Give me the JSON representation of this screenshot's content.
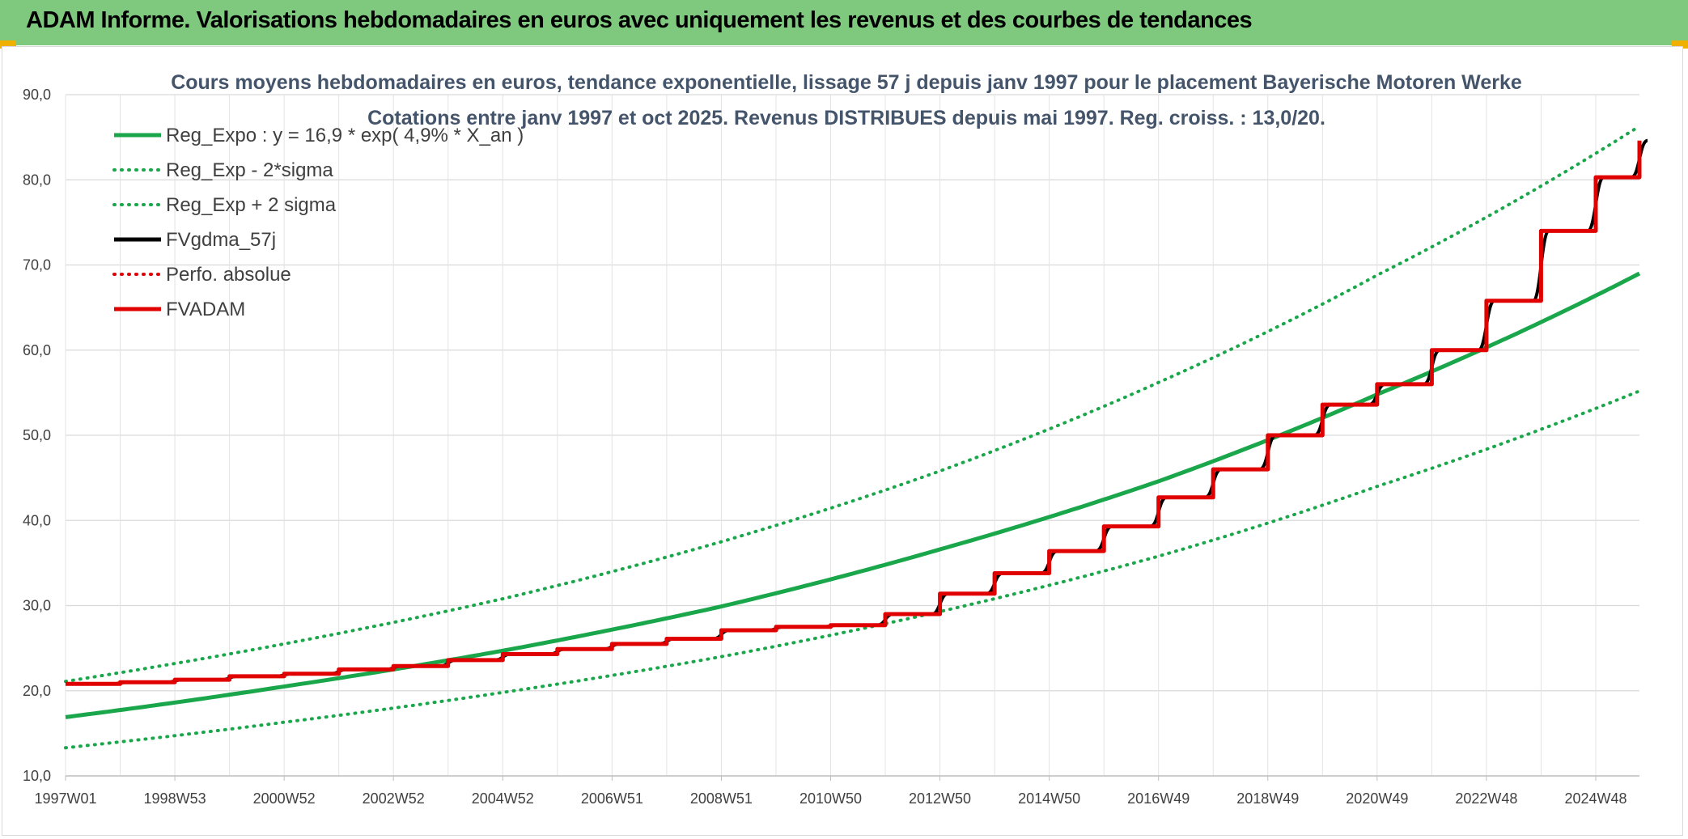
{
  "header": {
    "title": "ADAM Informe. Valorisations hebdomadaires en euros avec uniquement les revenus et des courbes de tendances",
    "background": "#7fc97f"
  },
  "chart_data": {
    "type": "line",
    "title_line1": "Cours moyens hebdomadaires en euros, tendance exponentielle, lissage 57 j depuis janv 1997 pour le placement Bayerische Motoren Werke",
    "title_line2": "Cotations entre janv 1997 et oct 2025. Revenus DISTRIBUES depuis mai 1997. Reg. croiss. : 13,0/20.",
    "xlabel": "",
    "ylabel": "",
    "ylim": [
      10,
      90
    ],
    "y_ticks": [
      "10,0",
      "20,0",
      "30,0",
      "40,0",
      "50,0",
      "60,0",
      "70,0",
      "80,0",
      "90,0"
    ],
    "x_range_years": [
      1997.0,
      2025.8
    ],
    "x_tick_labels": [
      "1997W01",
      "1998W53",
      "2000W52",
      "2002W52",
      "2004W52",
      "2006W51",
      "2008W51",
      "2010W50",
      "2012W50",
      "2014W50",
      "2016W49",
      "2018W49",
      "2020W49",
      "2022W48",
      "2024W48"
    ],
    "x_tick_years": [
      1997,
      1999,
      2001,
      2003,
      2005,
      2007,
      2009,
      2011,
      2013,
      2015,
      2017,
      2019,
      2021,
      2023,
      2025
    ],
    "grid": true,
    "legend_position": "top-left",
    "series": [
      {
        "name": "Reg_Expo : y = 16,9 * exp( 4,9% *  X_an )",
        "color": "#1aa64a",
        "style": "solid",
        "x": [
          1997.0,
          2001.0,
          2005.0,
          2009.0,
          2013.0,
          2017.0,
          2021.0,
          2025.8
        ],
        "values": [
          16.9,
          20.5,
          24.7,
          29.9,
          36.6,
          44.6,
          54.8,
          69.0
        ]
      },
      {
        "name": "Reg_Exp - 2*sigma",
        "color": "#1aa64a",
        "style": "dotted",
        "x": [
          1997.0,
          2001.0,
          2005.0,
          2009.0,
          2013.0,
          2017.0,
          2021.0,
          2025.8
        ],
        "values": [
          13.3,
          16.3,
          19.8,
          24.0,
          29.3,
          35.8,
          44.0,
          55.2
        ]
      },
      {
        "name": "Reg_Exp + 2 sigma",
        "color": "#1aa64a",
        "style": "dotted",
        "x": [
          1997.0,
          2001.0,
          2005.0,
          2009.0,
          2013.0,
          2017.0,
          2021.0,
          2025.8
        ],
        "values": [
          21.1,
          25.5,
          30.8,
          37.5,
          45.8,
          56.2,
          68.8,
          86.3
        ]
      },
      {
        "name": "FVgdma_57j",
        "color": "#000000",
        "style": "smoothstep",
        "x": [
          1997.0,
          1998.0,
          1999.0,
          2000.0,
          2001.0,
          2002.0,
          2003.0,
          2004.0,
          2005.0,
          2006.0,
          2007.0,
          2008.0,
          2009.0,
          2010.0,
          2011.0,
          2012.0,
          2013.0,
          2014.0,
          2015.0,
          2016.0,
          2017.0,
          2018.0,
          2019.0,
          2020.0,
          2021.0,
          2022.0,
          2023.0,
          2024.0,
          2025.0,
          2025.8
        ],
        "values": [
          20.8,
          21.0,
          21.3,
          21.7,
          22.0,
          22.5,
          22.9,
          23.6,
          24.3,
          24.9,
          25.5,
          26.1,
          27.1,
          27.5,
          27.7,
          29.0,
          31.4,
          33.8,
          36.4,
          39.3,
          42.7,
          46.0,
          50.0,
          53.6,
          56.0,
          60.0,
          65.8,
          74.0,
          80.3,
          84.6
        ]
      },
      {
        "name": "Perfo. absolue",
        "color": "#e00000",
        "style": "dotted",
        "x": [],
        "values": []
      },
      {
        "name": "FVADAM",
        "color": "#e00000",
        "style": "step",
        "x": [
          1997.0,
          1998.0,
          1999.0,
          2000.0,
          2001.0,
          2002.0,
          2003.0,
          2004.0,
          2005.0,
          2006.0,
          2007.0,
          2008.0,
          2009.0,
          2010.0,
          2011.0,
          2012.0,
          2013.0,
          2014.0,
          2015.0,
          2016.0,
          2017.0,
          2018.0,
          2019.0,
          2020.0,
          2021.0,
          2022.0,
          2023.0,
          2024.0,
          2025.0,
          2025.8
        ],
        "values": [
          20.8,
          21.0,
          21.3,
          21.7,
          22.0,
          22.5,
          22.9,
          23.6,
          24.3,
          24.9,
          25.5,
          26.1,
          27.1,
          27.5,
          27.7,
          29.0,
          31.4,
          33.8,
          36.4,
          39.3,
          42.7,
          46.0,
          50.0,
          53.6,
          56.0,
          60.0,
          65.8,
          74.0,
          80.3,
          84.6
        ]
      }
    ]
  }
}
